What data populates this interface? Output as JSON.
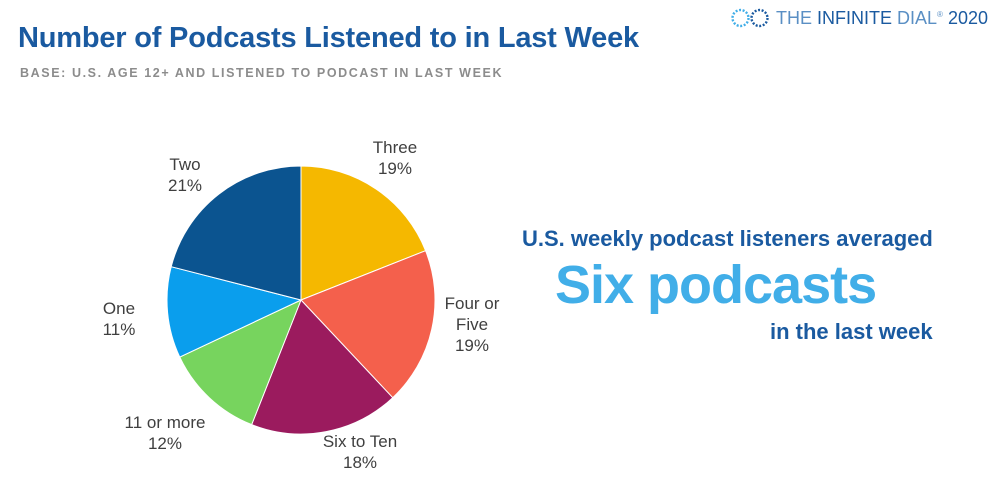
{
  "header": {
    "title": "Number of Podcasts Listened to in Last Week",
    "subtitle": "BASE: U.S. AGE 12+ AND LISTENED TO PODCAST IN LAST WEEK"
  },
  "brand": {
    "the": "THE ",
    "infinite": "INFINITE",
    "dial": " DIAL",
    "reg": "®",
    "year": " 2020"
  },
  "callout": {
    "line1": "U.S. weekly podcast listeners averaged",
    "big": "Six podcasts",
    "line3": "in the last week"
  },
  "chart_data": {
    "type": "pie",
    "slices": [
      {
        "label_lines": [
          "Three"
        ],
        "pct_label": "19%",
        "value": 19,
        "color": "#f5b800"
      },
      {
        "label_lines": [
          "Four or",
          "Five"
        ],
        "pct_label": "19%",
        "value": 19,
        "color": "#f4604c"
      },
      {
        "label_lines": [
          "Six to Ten"
        ],
        "pct_label": "18%",
        "value": 18,
        "color": "#9b1b5e"
      },
      {
        "label_lines": [
          "11 or more"
        ],
        "pct_label": "12%",
        "value": 12,
        "color": "#77d45e"
      },
      {
        "label_lines": [
          "One"
        ],
        "pct_label": "11%",
        "value": 11,
        "color": "#0a9eed"
      },
      {
        "label_lines": [
          "Two"
        ],
        "pct_label": "21%",
        "value": 21,
        "color": "#0b5490"
      }
    ]
  }
}
